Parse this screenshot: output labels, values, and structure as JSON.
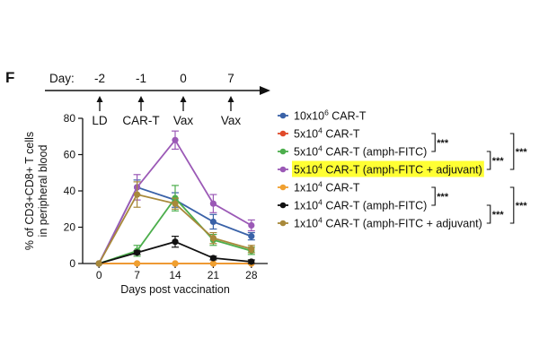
{
  "panel_letter": "F",
  "timeline": {
    "prefix": "Day:",
    "days": [
      "-2",
      "-1",
      "0",
      "7"
    ],
    "events": [
      "LD",
      "CAR-T",
      "Vax",
      "Vax"
    ]
  },
  "chart_data": {
    "type": "line",
    "xlabel": "Days post vaccination",
    "ylabel_lines": [
      "% of CD3+CD8+ T cells",
      "in peripheral blood"
    ],
    "x": [
      0,
      7,
      14,
      21,
      28
    ],
    "x_ticks": [
      "0",
      "7",
      "14",
      "21",
      "28"
    ],
    "ylim": [
      0,
      80
    ],
    "y_ticks": [
      "0",
      "20",
      "40",
      "60",
      "80"
    ],
    "grid": false,
    "legend_position": "right",
    "series": [
      {
        "name_base": "10x10",
        "name_sup": "6",
        "name_rest": " CAR-T",
        "color": "#3a62a8",
        "highlight": false,
        "values": [
          0,
          42,
          35,
          23,
          15
        ],
        "err": [
          0,
          4,
          4,
          4,
          2
        ]
      },
      {
        "name_base": "5x10",
        "name_sup": "4",
        "name_rest": " CAR-T",
        "color": "#e04a2a",
        "highlight": false,
        "values": [
          0,
          0,
          0,
          0,
          0
        ],
        "err": [
          0,
          0,
          0,
          0,
          0
        ]
      },
      {
        "name_base": "5x10",
        "name_sup": "4",
        "name_rest": " CAR-T (amph-FITC)",
        "color": "#4cae4c",
        "highlight": false,
        "values": [
          0,
          7,
          36,
          13,
          7
        ],
        "err": [
          0,
          3,
          7,
          3,
          2
        ]
      },
      {
        "name_base": "5x10",
        "name_sup": "4",
        "name_rest": " CAR-T (amph-FITC + adjuvant)",
        "color": "#9b59b6",
        "highlight": true,
        "values": [
          0,
          42,
          68,
          33,
          21
        ],
        "err": [
          0,
          7,
          5,
          5,
          3
        ]
      },
      {
        "name_base": "1x10",
        "name_sup": "4",
        "name_rest": " CAR-T",
        "color": "#f0a030",
        "highlight": false,
        "values": [
          0,
          0,
          0,
          0,
          0
        ],
        "err": [
          0,
          0,
          0,
          0,
          0
        ]
      },
      {
        "name_base": "1x10",
        "name_sup": "4",
        "name_rest": " CAR-T (amph-FITC)",
        "color": "#111111",
        "highlight": false,
        "values": [
          0,
          6,
          12,
          3,
          1
        ],
        "err": [
          0,
          1,
          3,
          1,
          1
        ]
      },
      {
        "name_base": "1x10",
        "name_sup": "4",
        "name_rest": " CAR-T (amph-FITC + adjuvant)",
        "color": "#a8893a",
        "highlight": false,
        "values": [
          0,
          38,
          33,
          14,
          8
        ],
        "err": [
          0,
          7,
          3,
          3,
          2
        ]
      }
    ],
    "significance": [
      {
        "label": "***",
        "from": 1,
        "to": 2
      },
      {
        "label": "***",
        "from": 2,
        "to": 3
      },
      {
        "label": "***",
        "from": 1,
        "to": 3
      },
      {
        "label": "***",
        "from": 4,
        "to": 5
      },
      {
        "label": "***",
        "from": 5,
        "to": 6
      },
      {
        "label": "***",
        "from": 4,
        "to": 6
      }
    ],
    "colors": {
      "axis": "#111111",
      "highlight": "#ffff33"
    }
  }
}
